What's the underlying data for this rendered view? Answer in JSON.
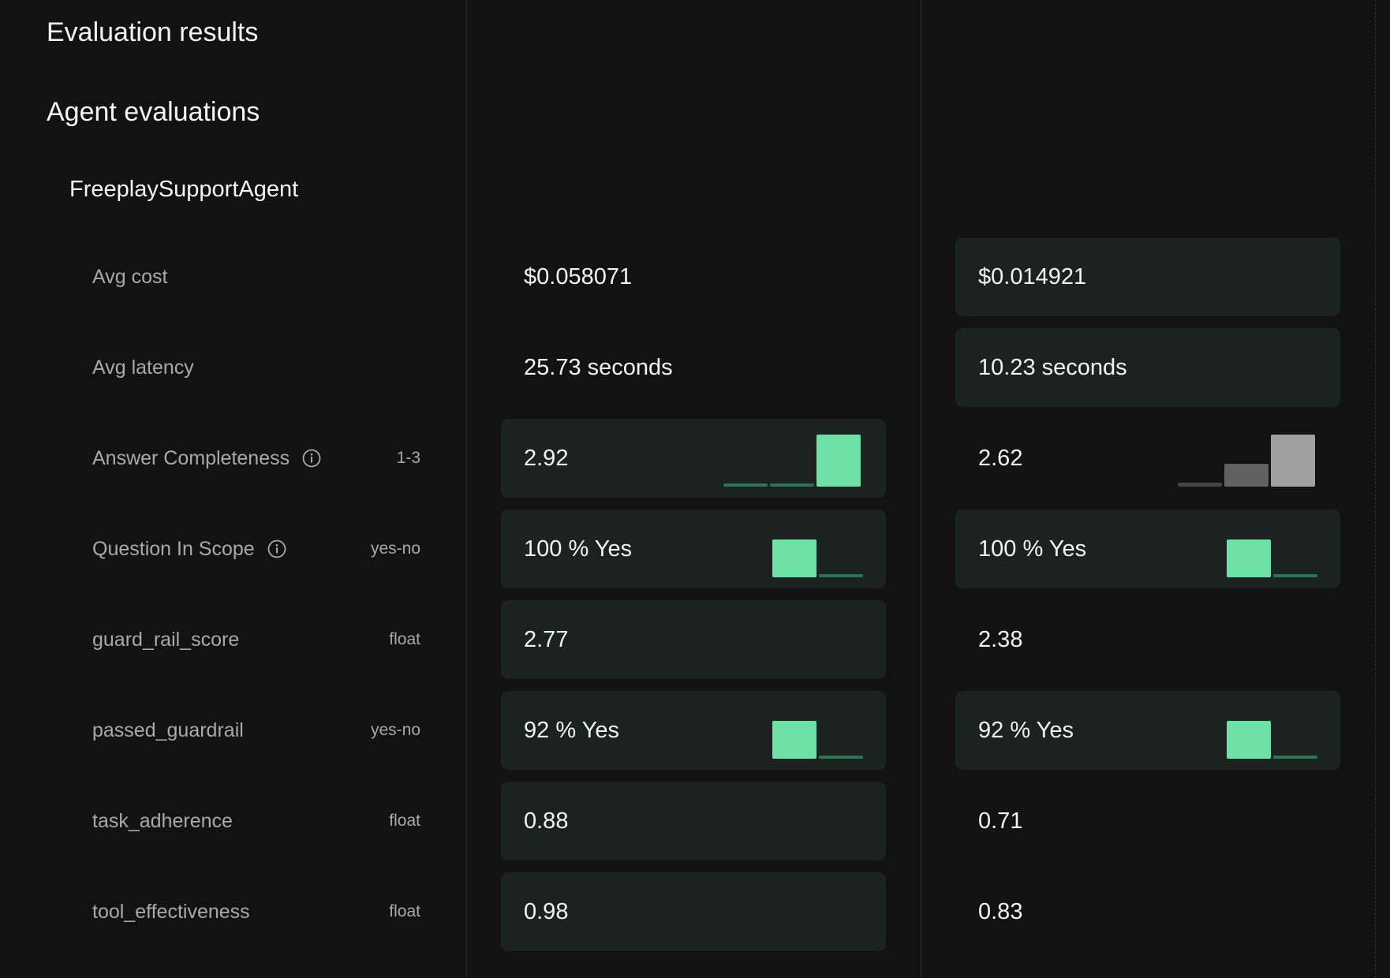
{
  "page": {
    "title": "Evaluation results",
    "section": "Agent evaluations",
    "agent": "FreeplaySupportAgent"
  },
  "colors": {
    "accent": "#6fe0a6",
    "accent_dim": "#2f7452",
    "neutral_light": "#a0a0a0",
    "neutral_mid": "#606060",
    "neutral_dark": "#464646",
    "highlight_cell": "#1b2320"
  },
  "metrics": [
    {
      "key": "avg_cost",
      "label": "Avg cost",
      "type": "",
      "info": false,
      "columns": [
        {
          "value": "$0.058071",
          "highlight": false
        },
        {
          "value": "$0.014921",
          "highlight": true
        }
      ]
    },
    {
      "key": "avg_latency",
      "label": "Avg latency",
      "type": "",
      "info": false,
      "columns": [
        {
          "value": "25.73 seconds",
          "highlight": false
        },
        {
          "value": "10.23 seconds",
          "highlight": true
        }
      ]
    },
    {
      "key": "answer_completeness",
      "label": "Answer Completeness",
      "type": "1-3",
      "info": true,
      "columns": [
        {
          "value": "2.92",
          "highlight": true,
          "histogram": {
            "values": [
              0.03,
              0.03,
              0.94
            ],
            "tone": "accent"
          }
        },
        {
          "value": "2.62",
          "highlight": false,
          "histogram": {
            "values": [
              0.05,
              0.29,
              0.66
            ],
            "tone": "neutral"
          }
        }
      ]
    },
    {
      "key": "question_in_scope",
      "label": "Question In Scope",
      "type": "yes-no",
      "info": true,
      "columns": [
        {
          "value": "100 % Yes",
          "highlight": true,
          "histogram": {
            "values": [
              1.0,
              0.0
            ],
            "tone": "accent"
          }
        },
        {
          "value": "100 % Yes",
          "highlight": true,
          "histogram": {
            "values": [
              1.0,
              0.0
            ],
            "tone": "accent"
          }
        }
      ]
    },
    {
      "key": "guard_rail_score",
      "label": "guard_rail_score",
      "type": "float",
      "info": false,
      "columns": [
        {
          "value": "2.77",
          "highlight": true
        },
        {
          "value": "2.38",
          "highlight": false
        }
      ]
    },
    {
      "key": "passed_guardrail",
      "label": "passed_guardrail",
      "type": "yes-no",
      "info": false,
      "columns": [
        {
          "value": "92 % Yes",
          "highlight": true,
          "histogram": {
            "values": [
              0.92,
              0.08
            ],
            "tone": "accent"
          }
        },
        {
          "value": "92 % Yes",
          "highlight": true,
          "histogram": {
            "values": [
              0.92,
              0.08
            ],
            "tone": "accent"
          }
        }
      ]
    },
    {
      "key": "task_adherence",
      "label": "task_adherence",
      "type": "float",
      "info": false,
      "columns": [
        {
          "value": "0.88",
          "highlight": true
        },
        {
          "value": "0.71",
          "highlight": false
        }
      ]
    },
    {
      "key": "tool_effectiveness",
      "label": "tool_effectiveness",
      "type": "float",
      "info": false,
      "columns": [
        {
          "value": "0.98",
          "highlight": true
        },
        {
          "value": "0.83",
          "highlight": false
        }
      ]
    }
  ]
}
